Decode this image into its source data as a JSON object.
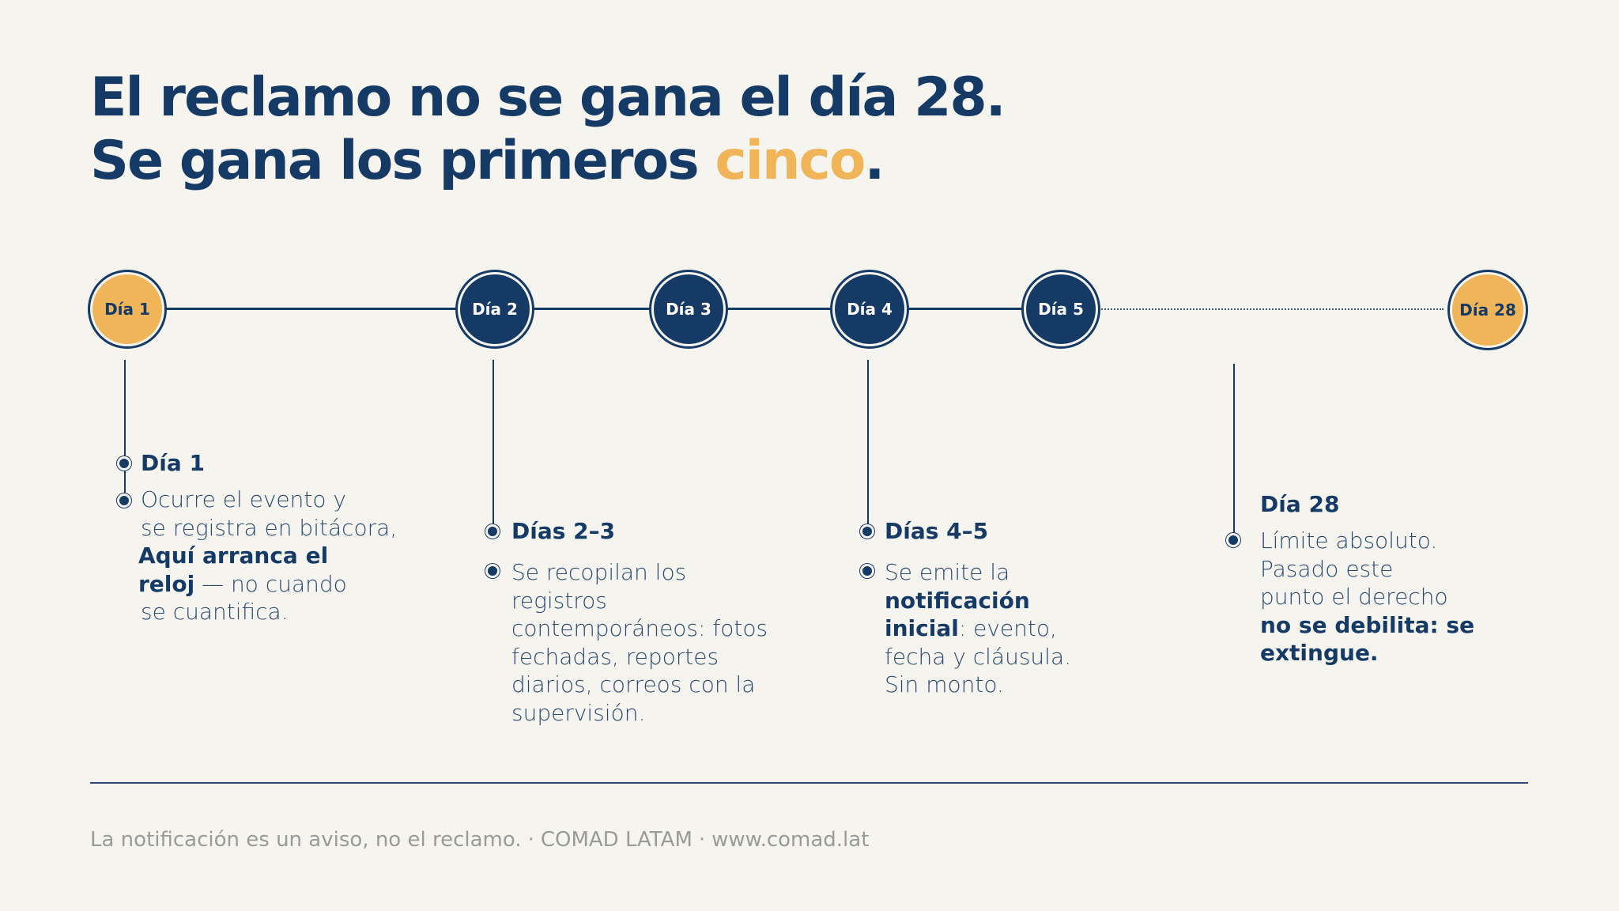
{
  "title": {
    "line1": "El reclamo no se gana el día 28.",
    "line2_start": "Se gana los primeros ",
    "line2_accent": "cinco",
    "line2_end": "."
  },
  "timeline": {
    "nodes": [
      {
        "label": "Día 1"
      },
      {
        "label": "Día 2"
      },
      {
        "label": "Día 3"
      },
      {
        "label": "Día 4"
      },
      {
        "label": "Día 5"
      },
      {
        "label": "Día 28"
      }
    ]
  },
  "blocks": {
    "day1": {
      "head": "Día 1",
      "l1": "Ocurre el evento y",
      "l2": "se registra en bitácora,",
      "b1": "Aquí arranca el",
      "b2": "reloj",
      "t2": " — no cuando",
      "l3": "se cuantifica."
    },
    "days23": {
      "head": "Días 2–3",
      "text": [
        "Se recopilan los",
        "registros",
        "contemporáneos: fotos",
        "fechadas, reportes",
        "diarios, correos con la",
        "supervisión."
      ]
    },
    "days45": {
      "head": "Días 4–5",
      "l1": "Se emite la",
      "b1": "notificación",
      "b2": "inicial",
      "t2": ": evento,",
      "l3": "fecha y cláusula.",
      "l4": "Sin monto."
    },
    "day28": {
      "head": "Día 28",
      "l1": "Límite absoluto.",
      "l2": "Pasado este",
      "l3": "punto el derecho",
      "b1": "no se debilita: se",
      "b2": "extingue."
    }
  },
  "footer": {
    "text1": "La notificación es un aviso, no el reclamo.",
    "sep": "·",
    "text2": "COMAD LATAM",
    "text3": "www.comad.lat"
  },
  "colors": {
    "navy": "#163a66",
    "gold": "#f0b559",
    "background": "#f6f4ee"
  }
}
